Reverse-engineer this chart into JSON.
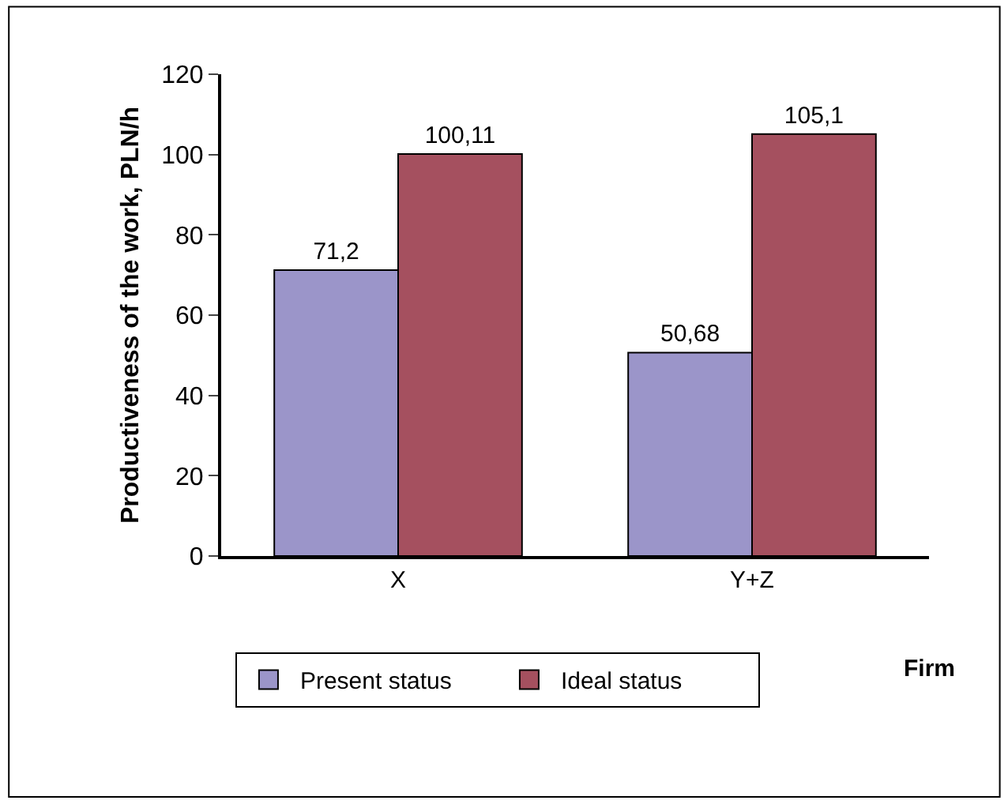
{
  "chart_data": {
    "type": "bar",
    "xlabel": "Firm",
    "ylabel": "Productiveness of the work, PLN/h",
    "categories": [
      "X",
      "Y+Z"
    ],
    "series": [
      {
        "name": "Present status",
        "color": "#9b95c9",
        "values": [
          71.2,
          50.68
        ],
        "value_labels": [
          "71,2",
          "50,68"
        ]
      },
      {
        "name": "Ideal status",
        "color": "#a5505f",
        "values": [
          100.11,
          105.1
        ],
        "value_labels": [
          "100,11",
          "105,1"
        ]
      }
    ],
    "ylim": [
      0,
      120
    ],
    "yticks": [
      0,
      20,
      40,
      60,
      80,
      100,
      120
    ],
    "legend": "bottom"
  }
}
